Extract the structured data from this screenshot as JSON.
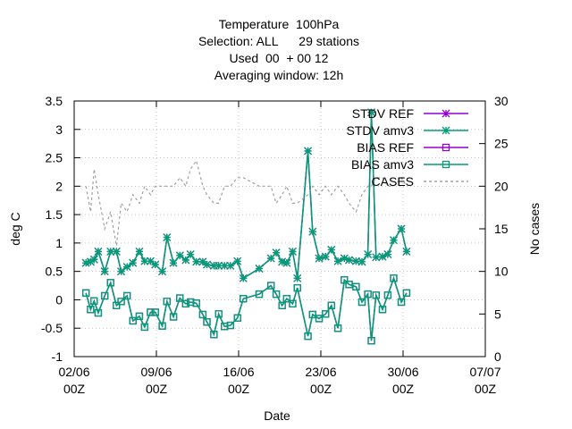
{
  "chart_data": {
    "type": "line",
    "title": [
      "Temperature  100hPa",
      "Selection: ALL      29 stations",
      "Used  00  + 00 12",
      "Averaging window: 12h"
    ],
    "xlabel": "Date",
    "ylabel": "deg C",
    "y2label": "No cases",
    "xlim": [
      0,
      35
    ],
    "xticks": [
      {
        "value": 0,
        "label": "02/06\n00Z"
      },
      {
        "value": 7,
        "label": "09/06\n00Z"
      },
      {
        "value": 14,
        "label": "16/06\n00Z"
      },
      {
        "value": 21,
        "label": "23/06\n00Z"
      },
      {
        "value": 28,
        "label": "30/06\n00Z"
      },
      {
        "value": 35,
        "label": "07/07\n00Z"
      }
    ],
    "ylim": [
      -1,
      3.5
    ],
    "yticks": [
      -1,
      -0.5,
      0,
      0.5,
      1,
      1.5,
      2,
      2.5,
      3,
      3.5
    ],
    "y2lim": [
      0,
      30
    ],
    "y2ticks": [
      0,
      5,
      10,
      15,
      20,
      25,
      30
    ],
    "grid": true,
    "legend": "top right",
    "x": [
      1.0,
      1.4,
      1.7,
      2.05,
      2.6,
      3.1,
      3.6,
      4.0,
      4.5,
      5.0,
      5.55,
      6.0,
      6.5,
      6.9,
      7.5,
      7.9,
      8.45,
      9.0,
      9.5,
      9.9,
      10.4,
      10.95,
      11.3,
      11.9,
      12.3,
      12.8,
      13.3,
      13.9,
      14.4,
      15.75,
      16.75,
      17.2,
      17.7,
      18.1,
      18.6,
      19.0,
      19.9,
      20.3,
      20.85,
      21.4,
      21.9,
      22.45,
      23.0,
      23.4,
      24.0,
      24.5,
      25.0,
      25.3,
      25.7,
      26.25,
      26.7,
      27.2,
      27.85,
      28.3
    ],
    "series": [
      {
        "name": "STDV REF",
        "color": "#9400d3",
        "marker": "star",
        "values": [
          0.65,
          0.67,
          0.71,
          0.85,
          0.5,
          0.85,
          0.85,
          0.5,
          0.58,
          0.65,
          0.85,
          0.68,
          0.68,
          0.62,
          0.5,
          1.1,
          0.65,
          0.78,
          0.7,
          0.8,
          0.67,
          0.67,
          0.62,
          0.6,
          0.6,
          0.6,
          0.6,
          0.68,
          0.38,
          0.55,
          0.73,
          0.83,
          0.67,
          0.65,
          0.85,
          0.38,
          2.62,
          1.2,
          0.73,
          0.76,
          0.88,
          0.68,
          0.73,
          0.7,
          0.68,
          0.67,
          0.8,
          3.3,
          0.75,
          0.76,
          0.8,
          1.05,
          1.25,
          0.85
        ]
      },
      {
        "name": "STDV amv3",
        "color": "#009e73",
        "marker": "star",
        "values": [
          0.65,
          0.67,
          0.71,
          0.85,
          0.5,
          0.85,
          0.85,
          0.5,
          0.58,
          0.65,
          0.85,
          0.68,
          0.68,
          0.62,
          0.5,
          1.1,
          0.65,
          0.78,
          0.7,
          0.8,
          0.67,
          0.67,
          0.62,
          0.6,
          0.6,
          0.6,
          0.6,
          0.68,
          0.38,
          0.55,
          0.73,
          0.83,
          0.67,
          0.65,
          0.85,
          0.38,
          2.62,
          1.2,
          0.73,
          0.76,
          0.88,
          0.68,
          0.73,
          0.7,
          0.68,
          0.67,
          0.8,
          3.3,
          0.75,
          0.76,
          0.8,
          1.05,
          1.25,
          0.85
        ]
      },
      {
        "name": "BIAS REF",
        "color": "#9400d3",
        "marker": "square",
        "values": [
          0.12,
          -0.17,
          -0.02,
          -0.23,
          0.07,
          0.3,
          -0.1,
          -0.03,
          0.07,
          -0.37,
          -0.29,
          -0.48,
          -0.22,
          -0.22,
          -0.46,
          -0.03,
          -0.3,
          0.03,
          -0.07,
          -0.04,
          -0.06,
          -0.26,
          -0.39,
          -0.61,
          -0.25,
          -0.47,
          -0.45,
          -0.32,
          0.02,
          0.1,
          0.25,
          0.1,
          -0.1,
          0.02,
          -0.07,
          0.21,
          -0.64,
          -0.26,
          -0.33,
          -0.25,
          -0.1,
          -0.5,
          0.35,
          0.27,
          0.23,
          -0.04,
          0.1,
          -0.72,
          0.08,
          -0.17,
          0.08,
          0.38,
          -0.04,
          0.12
        ]
      },
      {
        "name": "BIAS amv3",
        "color": "#009e73",
        "marker": "square",
        "values": [
          0.12,
          -0.17,
          -0.02,
          -0.23,
          0.07,
          0.3,
          -0.1,
          -0.03,
          0.07,
          -0.37,
          -0.29,
          -0.48,
          -0.22,
          -0.22,
          -0.46,
          -0.03,
          -0.3,
          0.03,
          -0.07,
          -0.04,
          -0.06,
          -0.26,
          -0.39,
          -0.61,
          -0.25,
          -0.47,
          -0.45,
          -0.32,
          0.02,
          0.1,
          0.25,
          0.1,
          -0.1,
          0.02,
          -0.07,
          0.21,
          -0.64,
          -0.26,
          -0.33,
          -0.25,
          -0.1,
          -0.5,
          0.35,
          0.27,
          0.23,
          -0.04,
          0.1,
          -0.72,
          0.08,
          -0.17,
          0.08,
          0.38,
          -0.04,
          0.12
        ]
      },
      {
        "name": "CASES",
        "color": "#a0a0a0",
        "marker": "none",
        "dash": true,
        "axis": "y2",
        "values": [
          20,
          17,
          22,
          19,
          15,
          17,
          13,
          18,
          17,
          19,
          18,
          20,
          19,
          20,
          20,
          20,
          20,
          21,
          20,
          22,
          23,
          20,
          19,
          18,
          18,
          20,
          20,
          21,
          21,
          20,
          20,
          18,
          19,
          20,
          18,
          18,
          19,
          20,
          19,
          20,
          19,
          20,
          19,
          18,
          17,
          19,
          20,
          20,
          21,
          21,
          20,
          20,
          21,
          20
        ]
      }
    ]
  }
}
